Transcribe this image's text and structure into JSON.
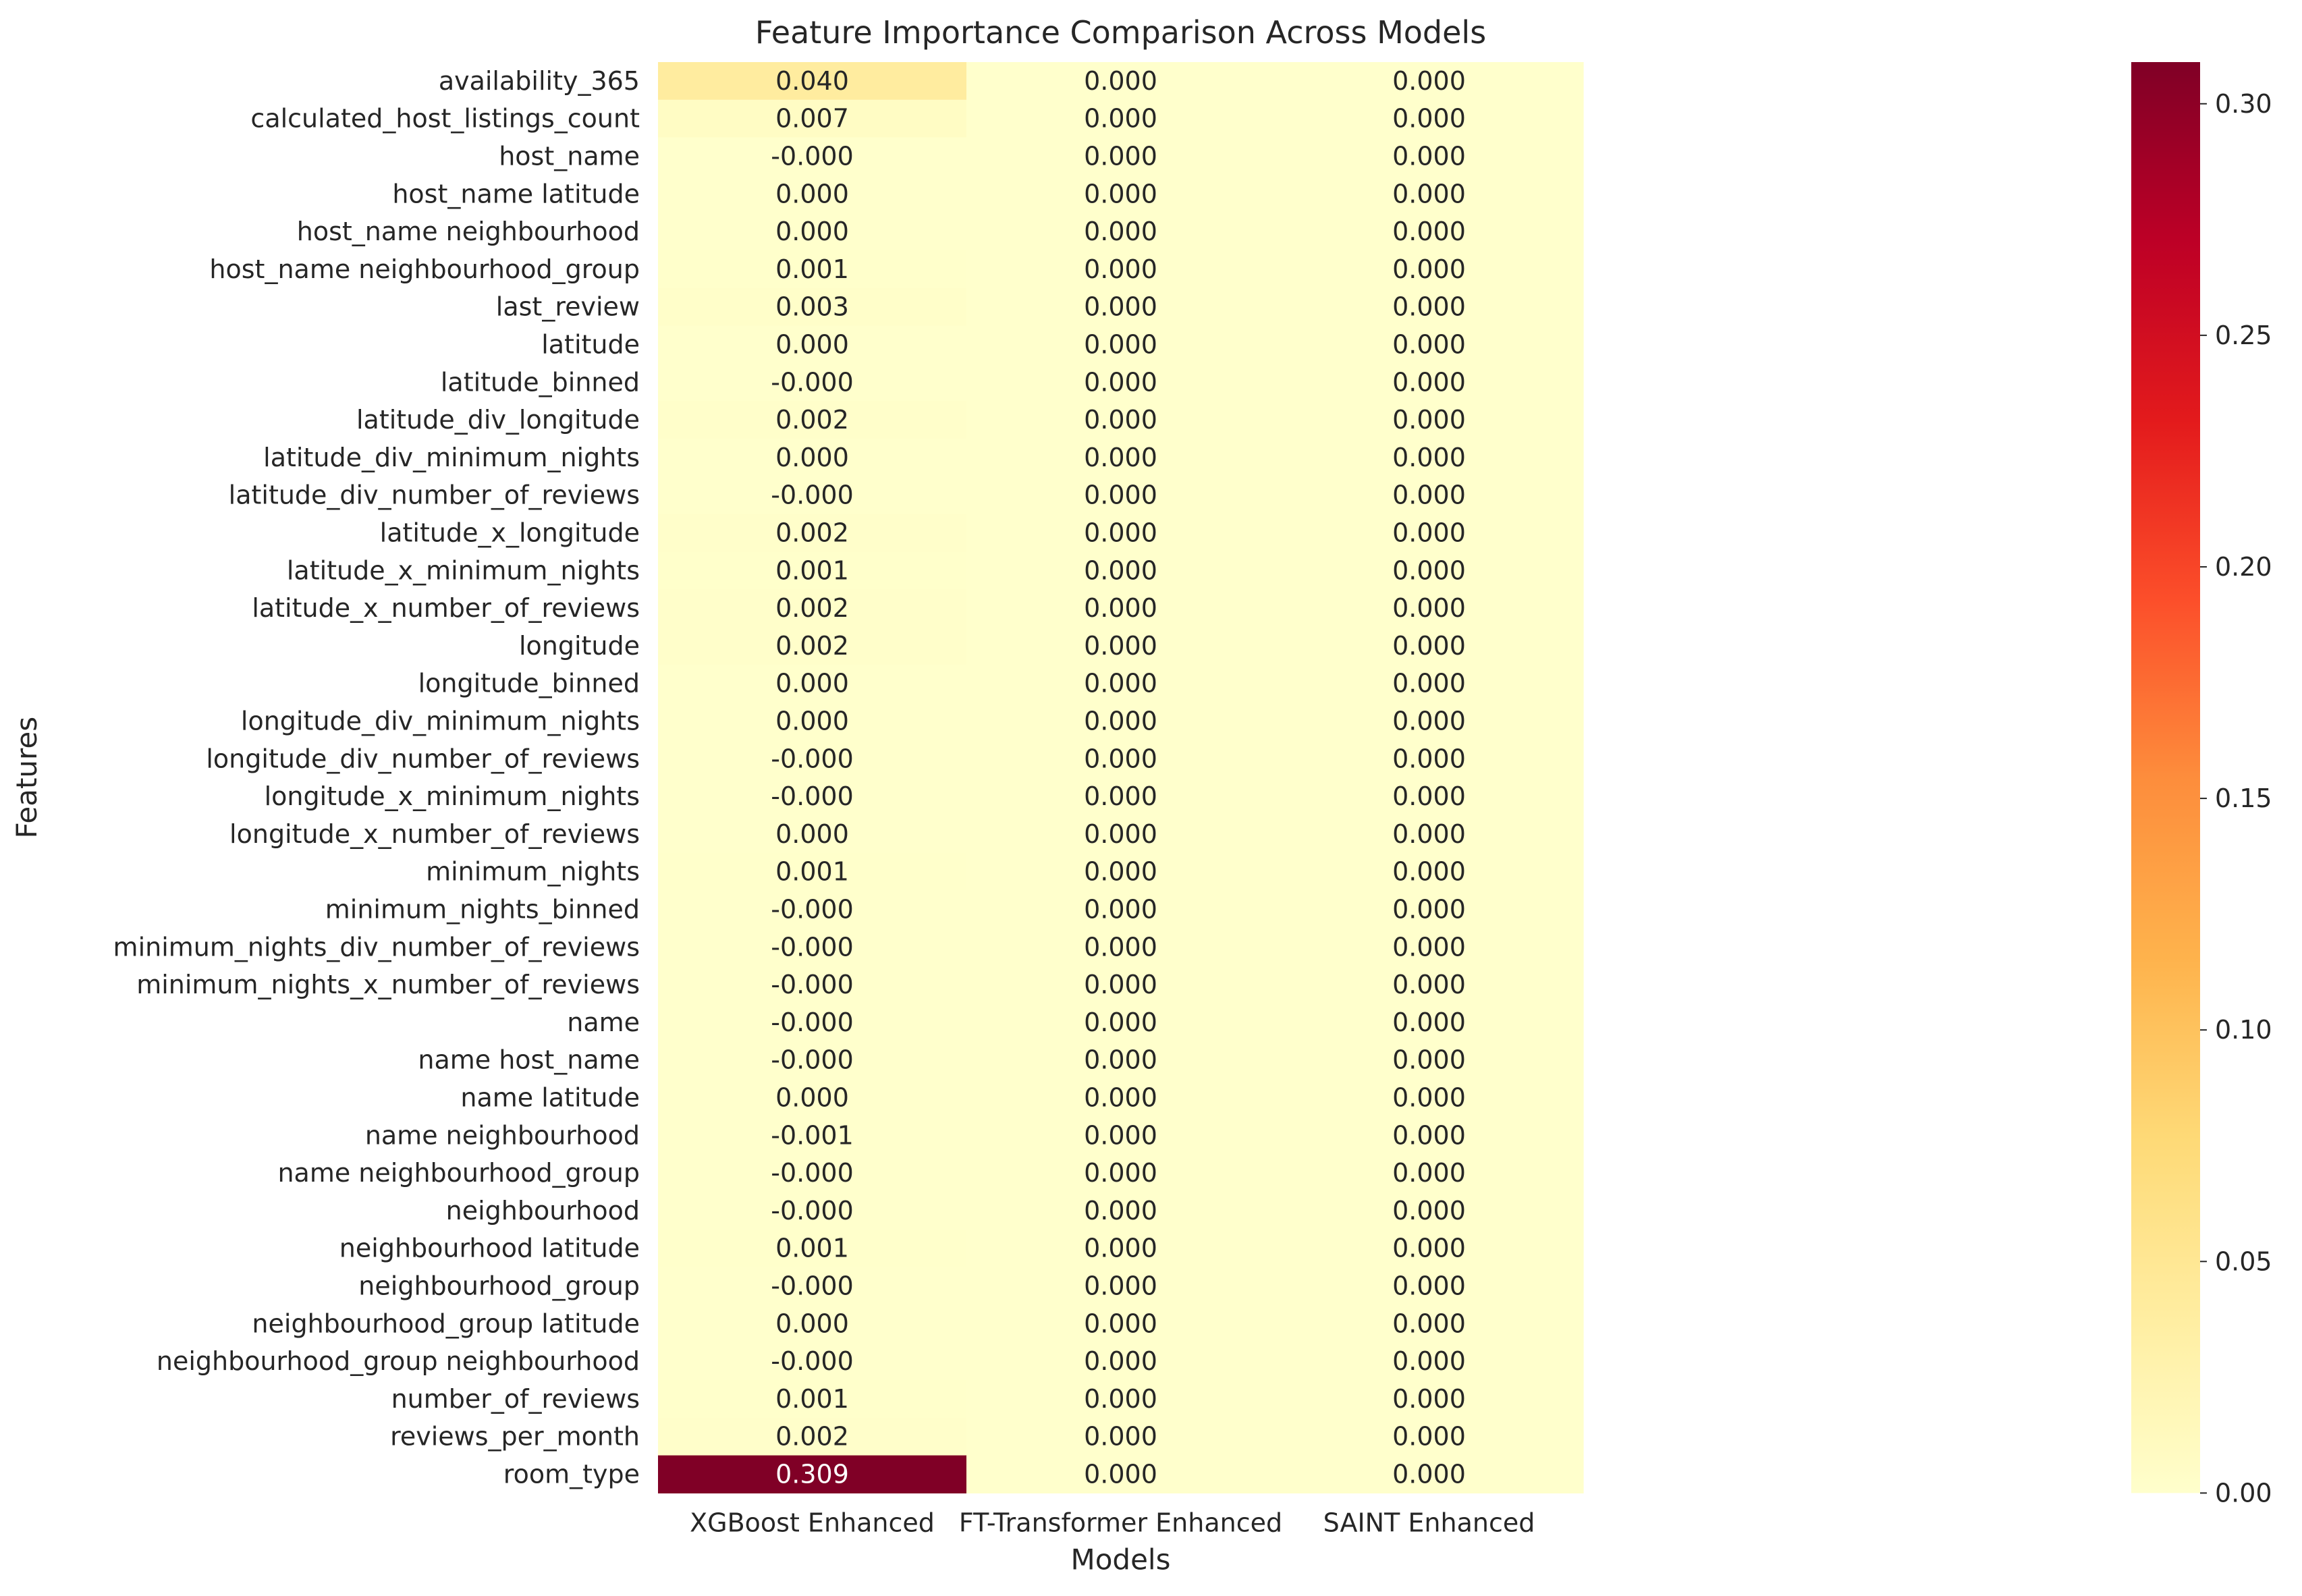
{
  "chart_data": {
    "type": "heatmap",
    "title": "Feature Importance Comparison Across Models",
    "xlabel": "Models",
    "ylabel": "Features",
    "columns": [
      "XGBoost Enhanced",
      "FT-Transformer Enhanced",
      "SAINT Enhanced"
    ],
    "rows": [
      "availability_365",
      "calculated_host_listings_count",
      "host_name",
      "host_name latitude",
      "host_name neighbourhood",
      "host_name neighbourhood_group",
      "last_review",
      "latitude",
      "latitude_binned",
      "latitude_div_longitude",
      "latitude_div_minimum_nights",
      "latitude_div_number_of_reviews",
      "latitude_x_longitude",
      "latitude_x_minimum_nights",
      "latitude_x_number_of_reviews",
      "longitude",
      "longitude_binned",
      "longitude_div_minimum_nights",
      "longitude_div_number_of_reviews",
      "longitude_x_minimum_nights",
      "longitude_x_number_of_reviews",
      "minimum_nights",
      "minimum_nights_binned",
      "minimum_nights_div_number_of_reviews",
      "minimum_nights_x_number_of_reviews",
      "name",
      "name host_name",
      "name latitude",
      "name neighbourhood",
      "name neighbourhood_group",
      "neighbourhood",
      "neighbourhood latitude",
      "neighbourhood_group",
      "neighbourhood_group latitude",
      "neighbourhood_group neighbourhood",
      "number_of_reviews",
      "reviews_per_month",
      "room_type"
    ],
    "values": [
      [
        0.04,
        0.0,
        0.0
      ],
      [
        0.007,
        0.0,
        0.0
      ],
      [
        -0.0001,
        0.0,
        0.0
      ],
      [
        0.0,
        0.0,
        0.0
      ],
      [
        0.0,
        0.0,
        0.0
      ],
      [
        0.001,
        0.0,
        0.0
      ],
      [
        0.003,
        0.0,
        0.0
      ],
      [
        0.0,
        0.0,
        0.0
      ],
      [
        -0.0001,
        0.0,
        0.0
      ],
      [
        0.002,
        0.0,
        0.0
      ],
      [
        0.0,
        0.0,
        0.0
      ],
      [
        -0.0001,
        0.0,
        0.0
      ],
      [
        0.002,
        0.0,
        0.0
      ],
      [
        0.001,
        0.0,
        0.0
      ],
      [
        0.002,
        0.0,
        0.0
      ],
      [
        0.002,
        0.0,
        0.0
      ],
      [
        0.0,
        0.0,
        0.0
      ],
      [
        0.0,
        0.0,
        0.0
      ],
      [
        -0.0001,
        0.0,
        0.0
      ],
      [
        -0.0001,
        0.0,
        0.0
      ],
      [
        0.0,
        0.0,
        0.0
      ],
      [
        0.001,
        0.0,
        0.0
      ],
      [
        -0.0001,
        0.0,
        0.0
      ],
      [
        -0.0001,
        0.0,
        0.0
      ],
      [
        -0.0001,
        0.0,
        0.0
      ],
      [
        -0.0001,
        0.0,
        0.0
      ],
      [
        -0.0001,
        0.0,
        0.0
      ],
      [
        0.0,
        0.0,
        0.0
      ],
      [
        -0.001,
        0.0,
        0.0
      ],
      [
        -0.0001,
        0.0,
        0.0
      ],
      [
        -0.0001,
        0.0,
        0.0
      ],
      [
        0.001,
        0.0,
        0.0
      ],
      [
        -0.0001,
        0.0,
        0.0
      ],
      [
        0.0,
        0.0,
        0.0
      ],
      [
        -0.0001,
        0.0,
        0.0
      ],
      [
        0.001,
        0.0,
        0.0
      ],
      [
        0.002,
        0.0,
        0.0
      ],
      [
        0.309,
        0.0,
        0.0
      ]
    ],
    "value_labels": [
      [
        "0.040",
        "0.000",
        "0.000"
      ],
      [
        "0.007",
        "0.000",
        "0.000"
      ],
      [
        "-0.000",
        "0.000",
        "0.000"
      ],
      [
        "0.000",
        "0.000",
        "0.000"
      ],
      [
        "0.000",
        "0.000",
        "0.000"
      ],
      [
        "0.001",
        "0.000",
        "0.000"
      ],
      [
        "0.003",
        "0.000",
        "0.000"
      ],
      [
        "0.000",
        "0.000",
        "0.000"
      ],
      [
        "-0.000",
        "0.000",
        "0.000"
      ],
      [
        "0.002",
        "0.000",
        "0.000"
      ],
      [
        "0.000",
        "0.000",
        "0.000"
      ],
      [
        "-0.000",
        "0.000",
        "0.000"
      ],
      [
        "0.002",
        "0.000",
        "0.000"
      ],
      [
        "0.001",
        "0.000",
        "0.000"
      ],
      [
        "0.002",
        "0.000",
        "0.000"
      ],
      [
        "0.002",
        "0.000",
        "0.000"
      ],
      [
        "0.000",
        "0.000",
        "0.000"
      ],
      [
        "0.000",
        "0.000",
        "0.000"
      ],
      [
        "-0.000",
        "0.000",
        "0.000"
      ],
      [
        "-0.000",
        "0.000",
        "0.000"
      ],
      [
        "0.000",
        "0.000",
        "0.000"
      ],
      [
        "0.001",
        "0.000",
        "0.000"
      ],
      [
        "-0.000",
        "0.000",
        "0.000"
      ],
      [
        "-0.000",
        "0.000",
        "0.000"
      ],
      [
        "-0.000",
        "0.000",
        "0.000"
      ],
      [
        "-0.000",
        "0.000",
        "0.000"
      ],
      [
        "-0.000",
        "0.000",
        "0.000"
      ],
      [
        "0.000",
        "0.000",
        "0.000"
      ],
      [
        "-0.001",
        "0.000",
        "0.000"
      ],
      [
        "-0.000",
        "0.000",
        "0.000"
      ],
      [
        "-0.000",
        "0.000",
        "0.000"
      ],
      [
        "0.001",
        "0.000",
        "0.000"
      ],
      [
        "-0.000",
        "0.000",
        "0.000"
      ],
      [
        "0.000",
        "0.000",
        "0.000"
      ],
      [
        "-0.000",
        "0.000",
        "0.000"
      ],
      [
        "0.001",
        "0.000",
        "0.000"
      ],
      [
        "0.002",
        "0.000",
        "0.000"
      ],
      [
        "0.309",
        "0.000",
        "0.000"
      ]
    ],
    "colorbar": {
      "min": 0.0,
      "max": 0.309,
      "ticks": [
        0.0,
        0.05,
        0.1,
        0.15,
        0.2,
        0.25,
        0.3
      ],
      "tick_labels": [
        "0.00",
        "0.05",
        "0.10",
        "0.15",
        "0.20",
        "0.25",
        "0.30"
      ],
      "colormap": "YlOrRd",
      "colormap_stops": [
        "#ffffcc",
        "#ffeda0",
        "#fed976",
        "#feb24c",
        "#fd8d3c",
        "#fc4e2a",
        "#e31a1c",
        "#bd0026",
        "#800026"
      ]
    },
    "grid": false,
    "legend": "colorbar-right"
  }
}
